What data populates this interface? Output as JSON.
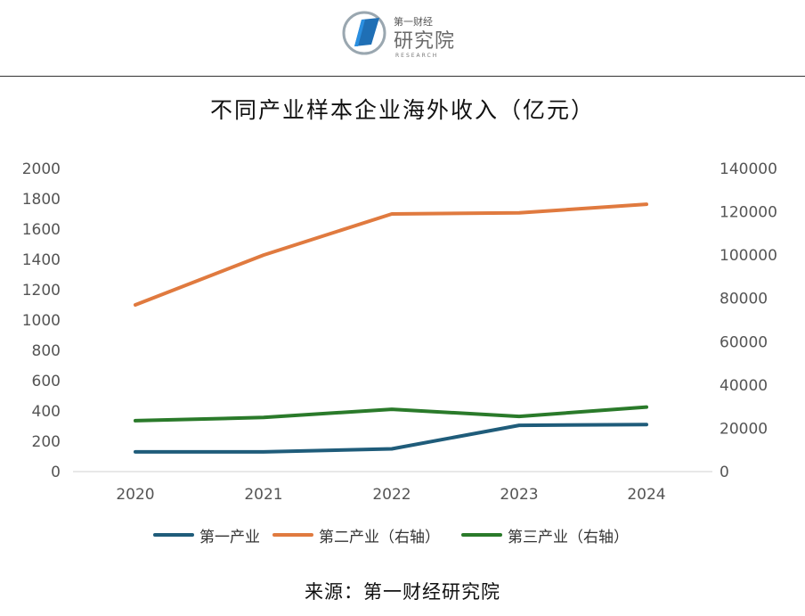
{
  "header": {
    "logo_small": "第一财经",
    "logo_big": "研究院",
    "logo_tiny": "RESEARCH"
  },
  "chart_data": {
    "type": "line",
    "title": "不同产业样本企业海外收入（亿元）",
    "categories": [
      "2020",
      "2021",
      "2022",
      "2023",
      "2024"
    ],
    "left_axis": {
      "min": 0,
      "max": 2000,
      "ticks": [
        "0",
        "200",
        "400",
        "600",
        "800",
        "1000",
        "1200",
        "1400",
        "1600",
        "1800",
        "2000"
      ]
    },
    "right_axis": {
      "min": 0,
      "max": 140000,
      "ticks": [
        "0",
        "20000",
        "40000",
        "60000",
        "80000",
        "100000",
        "120000",
        "140000"
      ]
    },
    "series": [
      {
        "name": "第一产业",
        "axis": "left",
        "color": "#1f5c7a",
        "values": [
          130,
          130,
          150,
          305,
          310
        ]
      },
      {
        "name": "第二产业（右轴）",
        "axis": "right",
        "color": "#e07a3f",
        "values": [
          77000,
          100000,
          119000,
          119500,
          123500
        ]
      },
      {
        "name": "第三产业（右轴）",
        "axis": "right",
        "color": "#2a7a2a",
        "values": [
          23500,
          25000,
          28800,
          25500,
          29800
        ]
      }
    ],
    "grid": false,
    "legend_position": "bottom"
  },
  "source": "来源：第一财经研究院"
}
